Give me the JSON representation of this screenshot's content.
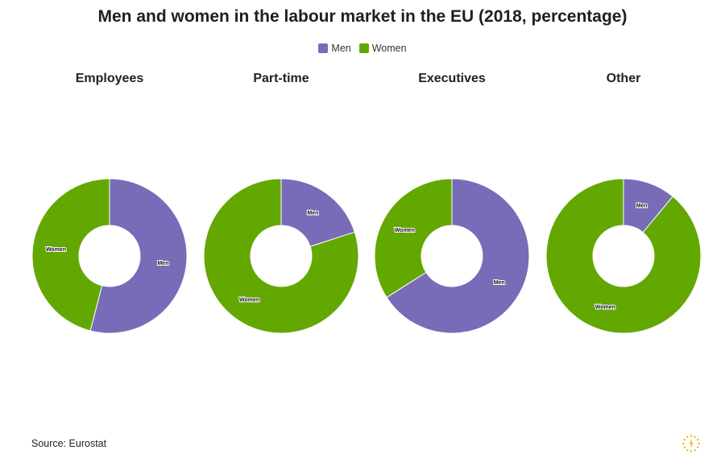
{
  "title": "Men and women in the labour market in the EU (2018, percentage)",
  "legend": [
    {
      "label": "Men",
      "color": "#786cb8"
    },
    {
      "label": "Women",
      "color": "#62a800"
    }
  ],
  "source": "Source: Eurostat",
  "logo_icon": "eu-stars-logo-icon",
  "chart_data": [
    {
      "type": "pie",
      "title": "Employees",
      "categories": [
        "Men",
        "Women"
      ],
      "values": [
        54,
        46
      ]
    },
    {
      "type": "pie",
      "title": "Part-time",
      "categories": [
        "Men",
        "Women"
      ],
      "values": [
        20,
        80
      ]
    },
    {
      "type": "pie",
      "title": "Executives",
      "categories": [
        "Men",
        "Women"
      ],
      "values": [
        66,
        34
      ]
    },
    {
      "type": "pie",
      "title": "Other",
      "categories": [
        "Men",
        "Women"
      ],
      "values": [
        11,
        89
      ]
    }
  ]
}
